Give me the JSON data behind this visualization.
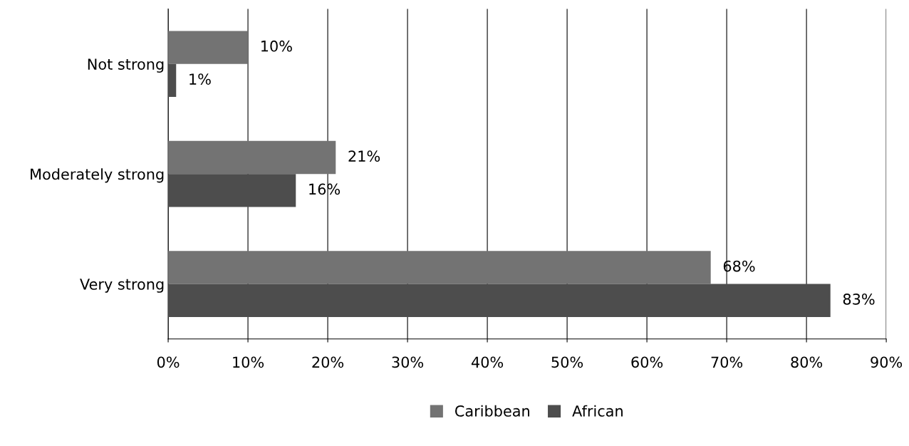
{
  "chart_data": {
    "type": "bar",
    "orientation": "horizontal",
    "categories": [
      "Not strong",
      "Moderately strong",
      "Very strong"
    ],
    "series": [
      {
        "name": "Caribbean",
        "color": "#737373",
        "values": [
          10,
          21,
          68
        ],
        "value_labels": [
          "10%",
          "21%",
          "68%"
        ]
      },
      {
        "name": "African",
        "color": "#4d4d4d",
        "values": [
          1,
          16,
          83
        ],
        "value_labels": [
          "1%",
          "16%",
          "83%"
        ]
      }
    ],
    "xlim": [
      0,
      90
    ],
    "xticks": [
      {
        "value": 0,
        "label": "0%"
      },
      {
        "value": 10,
        "label": "10%"
      },
      {
        "value": 20,
        "label": "20%"
      },
      {
        "value": 30,
        "label": "30%"
      },
      {
        "value": 40,
        "label": "40%"
      },
      {
        "value": 50,
        "label": "50%"
      },
      {
        "value": 60,
        "label": "60%"
      },
      {
        "value": 70,
        "label": "70%"
      },
      {
        "value": 80,
        "label": "80%"
      },
      {
        "value": 90,
        "label": "90%"
      }
    ],
    "grid": "x",
    "legend": "bottom"
  }
}
